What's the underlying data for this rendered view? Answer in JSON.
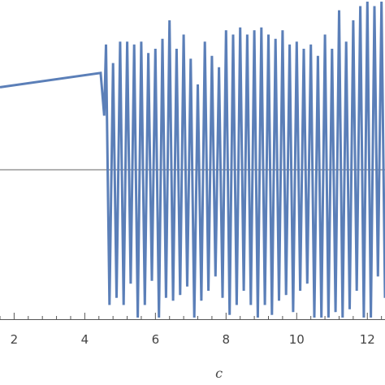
{
  "chart_data": {
    "type": "line",
    "title": "",
    "xlabel": "c",
    "ylabel": "",
    "xlim": [
      1.6,
      12.5
    ],
    "ylim": [
      -1.05,
      1.05
    ],
    "x_ticks": [
      "2",
      "4",
      "6",
      "8",
      "10",
      "12"
    ],
    "x_tick_values": [
      2,
      4,
      6,
      8,
      10,
      12
    ],
    "grid": false,
    "legend": "none",
    "reference_line_y": 0,
    "colors": {
      "series": "#5b7fb8",
      "axis": "#555555",
      "zero_line": "#666666"
    },
    "series": [
      {
        "x": [
          1.6,
          4.45,
          4.55,
          4.6,
          4.7,
          4.8,
          4.9,
          5.0,
          5.1,
          5.2,
          5.3,
          5.4,
          5.5,
          5.6,
          5.7,
          5.8,
          5.9,
          6.0,
          6.1,
          6.2,
          6.3,
          6.4,
          6.5,
          6.6,
          6.7,
          6.8,
          6.9,
          7.0,
          7.1,
          7.2,
          7.3,
          7.4,
          7.5,
          7.6,
          7.7,
          7.8,
          7.9,
          8.0,
          8.1,
          8.2,
          8.3,
          8.4,
          8.5,
          8.6,
          8.7,
          8.8,
          8.9,
          9.0,
          9.1,
          9.2,
          9.3,
          9.4,
          9.5,
          9.6,
          9.7,
          9.8,
          9.9,
          10.0,
          10.1,
          10.2,
          10.3,
          10.4,
          10.5,
          10.6,
          10.7,
          10.8,
          10.9,
          11.0,
          11.1,
          11.2,
          11.3,
          11.4,
          11.5,
          11.6,
          11.7,
          11.8,
          11.9,
          12.0,
          12.1,
          12.2,
          12.3,
          12.4,
          12.5
        ],
        "y": [
          0.58,
          0.68,
          0.38,
          0.88,
          -0.95,
          0.75,
          -0.9,
          0.9,
          -0.95,
          0.9,
          -0.8,
          0.88,
          -1.1,
          0.9,
          -0.95,
          0.82,
          -0.78,
          0.85,
          -1.05,
          0.92,
          -0.9,
          1.05,
          -0.92,
          0.85,
          -0.88,
          0.95,
          -0.82,
          0.78,
          -1.05,
          0.6,
          -0.92,
          0.9,
          -0.85,
          0.8,
          -0.75,
          0.72,
          -0.9,
          0.98,
          -1.02,
          0.95,
          -0.95,
          1.0,
          -0.85,
          0.95,
          -0.95,
          0.98,
          -1.08,
          1.0,
          -0.95,
          0.95,
          -1.02,
          0.92,
          -0.92,
          0.98,
          -0.88,
          0.88,
          -1.0,
          0.9,
          -0.85,
          0.85,
          -0.8,
          0.88,
          -1.12,
          0.8,
          -1.1,
          0.95,
          -1.12,
          0.85,
          -1.0,
          1.12,
          -1.05,
          0.9,
          -0.98,
          1.05,
          -0.85,
          1.15,
          -1.2,
          1.2,
          -1.08,
          1.15,
          -0.75,
          1.2,
          -0.9
        ]
      }
    ]
  }
}
